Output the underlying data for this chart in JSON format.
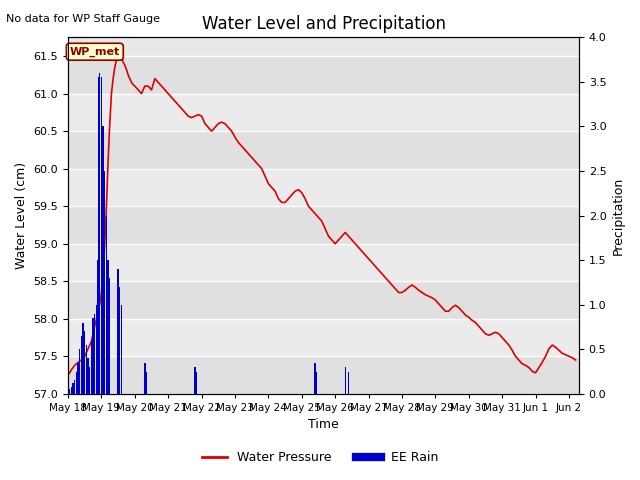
{
  "title": "Water Level and Precipitation",
  "subtitle": "No data for WP Staff Gauge",
  "ylabel_left": "Water Level (cm)",
  "ylabel_right": "Precipitation",
  "xlabel": "Time",
  "ylim_left": [
    57.0,
    61.75
  ],
  "ylim_right": [
    0.0,
    4.0
  ],
  "yticks_left": [
    57.0,
    57.5,
    58.0,
    58.5,
    59.0,
    59.5,
    60.0,
    60.5,
    61.0,
    61.5
  ],
  "yticks_right": [
    0.0,
    0.5,
    1.0,
    1.5,
    2.0,
    2.5,
    3.0,
    3.5,
    4.0
  ],
  "background_color": "#e8e8e8",
  "wp_line_color": "#dd0000",
  "rain_bar_color": "#0000cc",
  "annotation_text": "WP_met",
  "xmin": 18,
  "xmax": 33.3,
  "x_ticks": [
    18,
    19,
    20,
    21,
    22,
    23,
    24,
    25,
    26,
    27,
    28,
    29,
    30,
    31,
    32,
    33
  ],
  "x_tick_labels": [
    "May 18",
    "May 19",
    "May 20",
    "May 21",
    "May 22",
    "May 23",
    "May 24",
    "May 25",
    "May 26",
    "May 27",
    "May 28",
    "May 29",
    "May 30",
    "May 31",
    "Jun 1",
    "Jun 2"
  ],
  "water_pressure_x": [
    18.0,
    18.05,
    18.1,
    18.15,
    18.2,
    18.25,
    18.3,
    18.4,
    18.5,
    18.6,
    18.7,
    18.75,
    18.8,
    18.85,
    18.9,
    18.95,
    19.0,
    19.05,
    19.1,
    19.15,
    19.2,
    19.25,
    19.3,
    19.35,
    19.4,
    19.45,
    19.5,
    19.55,
    19.6,
    19.65,
    19.7,
    19.75,
    19.8,
    19.85,
    19.9,
    19.95,
    20.0,
    20.1,
    20.2,
    20.3,
    20.4,
    20.5,
    20.6,
    20.7,
    20.8,
    20.9,
    21.0,
    21.1,
    21.2,
    21.3,
    21.4,
    21.5,
    21.6,
    21.7,
    21.8,
    21.9,
    22.0,
    22.1,
    22.2,
    22.3,
    22.4,
    22.5,
    22.6,
    22.7,
    22.8,
    22.9,
    23.0,
    23.1,
    23.2,
    23.3,
    23.4,
    23.5,
    23.6,
    23.7,
    23.8,
    23.9,
    24.0,
    24.1,
    24.2,
    24.3,
    24.4,
    24.5,
    24.6,
    24.7,
    24.8,
    24.9,
    25.0,
    25.1,
    25.2,
    25.3,
    25.4,
    25.5,
    25.6,
    25.7,
    25.8,
    25.9,
    26.0,
    26.1,
    26.2,
    26.3,
    26.4,
    26.5,
    26.6,
    26.7,
    26.8,
    26.9,
    27.0,
    27.1,
    27.2,
    27.3,
    27.4,
    27.5,
    27.6,
    27.7,
    27.8,
    27.9,
    28.0,
    28.1,
    28.2,
    28.3,
    28.4,
    28.5,
    28.6,
    28.7,
    28.8,
    28.9,
    29.0,
    29.1,
    29.2,
    29.3,
    29.4,
    29.5,
    29.6,
    29.7,
    29.8,
    29.9,
    30.0,
    30.1,
    30.2,
    30.3,
    30.4,
    30.5,
    30.6,
    30.7,
    30.8,
    30.9,
    31.0,
    31.1,
    31.2,
    31.3,
    31.4,
    31.5,
    31.6,
    31.7,
    31.8,
    31.9,
    32.0,
    32.1,
    32.2,
    32.3,
    32.4,
    32.5,
    32.6,
    32.7,
    32.8,
    32.9,
    33.0,
    33.1,
    33.2
  ],
  "water_pressure_y": [
    57.25,
    57.28,
    57.32,
    57.35,
    57.38,
    57.4,
    57.42,
    57.45,
    57.5,
    57.6,
    57.7,
    57.8,
    57.9,
    58.0,
    58.1,
    58.2,
    58.35,
    58.6,
    59.0,
    59.5,
    60.1,
    60.6,
    61.0,
    61.2,
    61.35,
    61.45,
    61.52,
    61.52,
    61.48,
    61.42,
    61.38,
    61.32,
    61.25,
    61.2,
    61.15,
    61.12,
    61.1,
    61.05,
    61.0,
    61.1,
    61.1,
    61.05,
    61.2,
    61.15,
    61.1,
    61.05,
    61.0,
    60.95,
    60.9,
    60.85,
    60.8,
    60.75,
    60.7,
    60.68,
    60.7,
    60.72,
    60.7,
    60.6,
    60.55,
    60.5,
    60.55,
    60.6,
    60.62,
    60.6,
    60.55,
    60.5,
    60.42,
    60.35,
    60.3,
    60.25,
    60.2,
    60.15,
    60.1,
    60.05,
    60.0,
    59.9,
    59.8,
    59.75,
    59.7,
    59.6,
    59.55,
    59.55,
    59.6,
    59.65,
    59.7,
    59.72,
    59.68,
    59.6,
    59.5,
    59.45,
    59.4,
    59.35,
    59.3,
    59.2,
    59.1,
    59.05,
    59.0,
    59.05,
    59.1,
    59.15,
    59.1,
    59.05,
    59.0,
    58.95,
    58.9,
    58.85,
    58.8,
    58.75,
    58.7,
    58.65,
    58.6,
    58.55,
    58.5,
    58.45,
    58.4,
    58.35,
    58.35,
    58.38,
    58.42,
    58.45,
    58.42,
    58.38,
    58.35,
    58.32,
    58.3,
    58.28,
    58.25,
    58.2,
    58.15,
    58.1,
    58.1,
    58.15,
    58.18,
    58.15,
    58.1,
    58.05,
    58.02,
    57.98,
    57.95,
    57.9,
    57.85,
    57.8,
    57.78,
    57.8,
    57.82,
    57.8,
    57.75,
    57.7,
    57.65,
    57.58,
    57.5,
    57.45,
    57.4,
    57.38,
    57.35,
    57.3,
    57.28,
    57.35,
    57.42,
    57.5,
    57.6,
    57.65,
    57.62,
    57.58,
    57.54,
    57.52,
    57.5,
    57.48,
    57.45
  ],
  "rain_x": [
    18.05,
    18.1,
    18.15,
    18.2,
    18.25,
    18.3,
    18.35,
    18.4,
    18.45,
    18.5,
    18.55,
    18.6,
    18.65,
    18.7,
    18.75,
    18.8,
    18.85,
    18.9,
    18.92,
    18.95,
    19.0,
    19.05,
    19.1,
    19.15,
    19.2,
    19.25,
    19.5,
    19.55,
    19.6,
    20.3,
    20.35,
    21.8,
    21.85,
    25.4,
    25.45,
    26.3,
    26.4
  ],
  "rain_h": [
    0.05,
    0.08,
    0.12,
    0.15,
    0.25,
    0.35,
    0.5,
    0.65,
    0.8,
    0.7,
    0.55,
    0.4,
    0.3,
    0.6,
    0.85,
    0.9,
    1.0,
    1.5,
    3.55,
    3.6,
    3.55,
    3.0,
    2.5,
    2.0,
    1.5,
    1.3,
    1.4,
    1.2,
    1.0,
    0.35,
    0.25,
    0.3,
    0.25,
    0.35,
    0.25,
    0.3,
    0.25
  ]
}
